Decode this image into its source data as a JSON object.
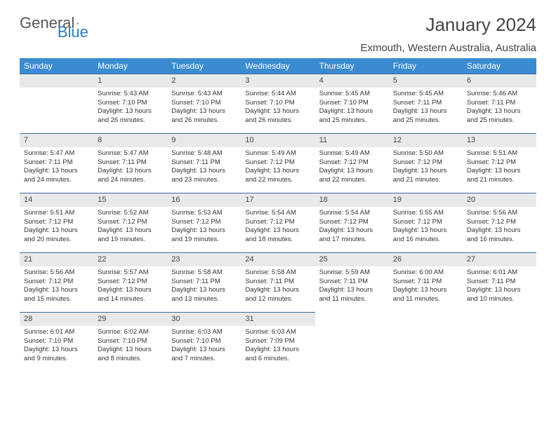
{
  "logo": {
    "text1": "General",
    "text2": "Blue"
  },
  "title": "January 2024",
  "location": "Exmouth, Western Australia, Australia",
  "weekdays": [
    "Sunday",
    "Monday",
    "Tuesday",
    "Wednesday",
    "Thursday",
    "Friday",
    "Saturday"
  ],
  "colors": {
    "header_bg": "#3a8bd0",
    "header_text": "#ffffff",
    "daynum_bg": "#e8e9ea",
    "daynum_border": "#3a6a9a",
    "text": "#333333",
    "logo_gray": "#555555",
    "logo_blue": "#2b7cc0"
  },
  "fonts": {
    "title_size": 26,
    "location_size": 15,
    "weekday_size": 12,
    "body_size": 9.5
  },
  "layout": {
    "cols": 7,
    "rows": 5,
    "first_day_col": 1
  },
  "days": [
    {
      "n": "1",
      "sr": "5:43 AM",
      "ss": "7:10 PM",
      "dl": "13 hours and 26 minutes."
    },
    {
      "n": "2",
      "sr": "5:43 AM",
      "ss": "7:10 PM",
      "dl": "13 hours and 26 minutes."
    },
    {
      "n": "3",
      "sr": "5:44 AM",
      "ss": "7:10 PM",
      "dl": "13 hours and 26 minutes."
    },
    {
      "n": "4",
      "sr": "5:45 AM",
      "ss": "7:10 PM",
      "dl": "13 hours and 25 minutes."
    },
    {
      "n": "5",
      "sr": "5:45 AM",
      "ss": "7:11 PM",
      "dl": "13 hours and 25 minutes."
    },
    {
      "n": "6",
      "sr": "5:46 AM",
      "ss": "7:11 PM",
      "dl": "13 hours and 25 minutes."
    },
    {
      "n": "7",
      "sr": "5:47 AM",
      "ss": "7:11 PM",
      "dl": "13 hours and 24 minutes."
    },
    {
      "n": "8",
      "sr": "5:47 AM",
      "ss": "7:11 PM",
      "dl": "13 hours and 24 minutes."
    },
    {
      "n": "9",
      "sr": "5:48 AM",
      "ss": "7:11 PM",
      "dl": "13 hours and 23 minutes."
    },
    {
      "n": "10",
      "sr": "5:49 AM",
      "ss": "7:12 PM",
      "dl": "13 hours and 22 minutes."
    },
    {
      "n": "11",
      "sr": "5:49 AM",
      "ss": "7:12 PM",
      "dl": "13 hours and 22 minutes."
    },
    {
      "n": "12",
      "sr": "5:50 AM",
      "ss": "7:12 PM",
      "dl": "13 hours and 21 minutes."
    },
    {
      "n": "13",
      "sr": "5:51 AM",
      "ss": "7:12 PM",
      "dl": "13 hours and 21 minutes."
    },
    {
      "n": "14",
      "sr": "5:51 AM",
      "ss": "7:12 PM",
      "dl": "13 hours and 20 minutes."
    },
    {
      "n": "15",
      "sr": "5:52 AM",
      "ss": "7:12 PM",
      "dl": "13 hours and 19 minutes."
    },
    {
      "n": "16",
      "sr": "5:53 AM",
      "ss": "7:12 PM",
      "dl": "13 hours and 19 minutes."
    },
    {
      "n": "17",
      "sr": "5:54 AM",
      "ss": "7:12 PM",
      "dl": "13 hours and 18 minutes."
    },
    {
      "n": "18",
      "sr": "5:54 AM",
      "ss": "7:12 PM",
      "dl": "13 hours and 17 minutes."
    },
    {
      "n": "19",
      "sr": "5:55 AM",
      "ss": "7:12 PM",
      "dl": "13 hours and 16 minutes."
    },
    {
      "n": "20",
      "sr": "5:56 AM",
      "ss": "7:12 PM",
      "dl": "13 hours and 16 minutes."
    },
    {
      "n": "21",
      "sr": "5:56 AM",
      "ss": "7:12 PM",
      "dl": "13 hours and 15 minutes."
    },
    {
      "n": "22",
      "sr": "5:57 AM",
      "ss": "7:12 PM",
      "dl": "13 hours and 14 minutes."
    },
    {
      "n": "23",
      "sr": "5:58 AM",
      "ss": "7:11 PM",
      "dl": "13 hours and 13 minutes."
    },
    {
      "n": "24",
      "sr": "5:58 AM",
      "ss": "7:11 PM",
      "dl": "13 hours and 12 minutes."
    },
    {
      "n": "25",
      "sr": "5:59 AM",
      "ss": "7:11 PM",
      "dl": "13 hours and 11 minutes."
    },
    {
      "n": "26",
      "sr": "6:00 AM",
      "ss": "7:11 PM",
      "dl": "13 hours and 11 minutes."
    },
    {
      "n": "27",
      "sr": "6:01 AM",
      "ss": "7:11 PM",
      "dl": "13 hours and 10 minutes."
    },
    {
      "n": "28",
      "sr": "6:01 AM",
      "ss": "7:10 PM",
      "dl": "13 hours and 9 minutes."
    },
    {
      "n": "29",
      "sr": "6:02 AM",
      "ss": "7:10 PM",
      "dl": "13 hours and 8 minutes."
    },
    {
      "n": "30",
      "sr": "6:03 AM",
      "ss": "7:10 PM",
      "dl": "13 hours and 7 minutes."
    },
    {
      "n": "31",
      "sr": "6:03 AM",
      "ss": "7:09 PM",
      "dl": "13 hours and 6 minutes."
    }
  ],
  "labels": {
    "sunrise": "Sunrise:",
    "sunset": "Sunset:",
    "daylight": "Daylight:"
  }
}
